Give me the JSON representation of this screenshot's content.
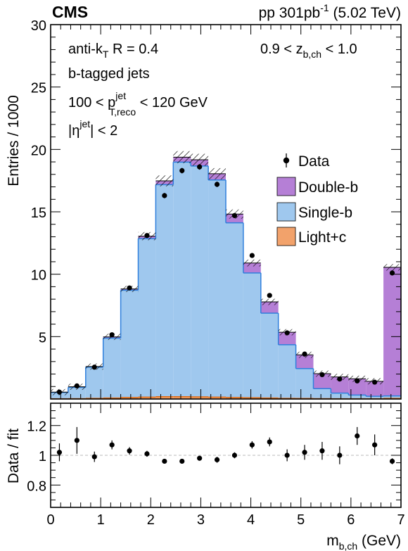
{
  "header": {
    "experiment": "CMS",
    "luminosity_prefix": "pp 301pb",
    "luminosity_exponent": "-1",
    "energy": " (5.02 TeV)"
  },
  "annotations": {
    "algorithm_main": "anti-k",
    "algorithm_sub": "T",
    "algorithm_rest": " R = 0.4",
    "z_range_pre": "0.9 < z",
    "z_range_sub": "b,ch",
    "z_range_post": " < 1.0",
    "tagging": "b-tagged jets",
    "pt_pre": "100 < p",
    "pt_sup": "jet",
    "pt_sub": "T,reco",
    "pt_post": " < 120 GeV",
    "eta_pre": "|η",
    "eta_sup": "jet",
    "eta_post": "| < 2"
  },
  "colors": {
    "double_b": "#b57fd6",
    "single_b": "#9fc8ee",
    "single_b_line": "#2f7fdc",
    "light_c": "#f2a26b",
    "light_c_line": "#e06a10"
  },
  "chart_data": [
    {
      "type": "bar",
      "stacked": true,
      "xlabel_main": "m",
      "xlabel_sub": "b,ch",
      "xlabel_unit": " (GeV)",
      "ylabel": "Entries / 1000",
      "xlim": [
        0,
        7
      ],
      "ylim": [
        0,
        30
      ],
      "y_ticks": [
        "5",
        "10",
        "15",
        "20",
        "25",
        "30"
      ],
      "x_ticks": [
        "0",
        "1",
        "2",
        "3",
        "4",
        "5",
        "6",
        "7"
      ],
      "legend_position": "top-right",
      "bin_edges": [
        0,
        0.35,
        0.7,
        1.05,
        1.4,
        1.75,
        2.1,
        2.45,
        2.8,
        3.15,
        3.5,
        3.85,
        4.2,
        4.55,
        4.9,
        5.25,
        5.6,
        5.95,
        6.3,
        6.65,
        7.0
      ],
      "legend": {
        "data": "Data",
        "double_b": "Double-b",
        "single_b": "Single-b",
        "light_c": "Light+c"
      },
      "series": [
        {
          "name": "Light+c",
          "values": [
            0.02,
            0.03,
            0.05,
            0.08,
            0.12,
            0.15,
            0.18,
            0.18,
            0.17,
            0.15,
            0.12,
            0.1,
            0.08,
            0.05,
            0.04,
            0.03,
            0.02,
            0.02,
            0.02,
            0.05
          ]
        },
        {
          "name": "Single-b",
          "values": [
            0.5,
            0.9,
            2.5,
            4.8,
            8.6,
            12.7,
            17.0,
            18.8,
            18.5,
            17.4,
            14.0,
            10.0,
            6.8,
            4.3,
            2.4,
            0.8,
            0.45,
            0.3,
            0.2,
            0.2
          ]
        },
        {
          "name": "Double-b",
          "values": [
            0.03,
            0.05,
            0.05,
            0.1,
            0.1,
            0.2,
            0.3,
            0.4,
            0.5,
            0.5,
            0.7,
            0.8,
            0.9,
            1.0,
            1.1,
            1.2,
            1.3,
            1.3,
            1.2,
            10.3
          ]
        }
      ],
      "data_points": {
        "x": [
          0.175,
          0.525,
          0.875,
          1.225,
          1.575,
          1.925,
          2.275,
          2.625,
          2.975,
          3.325,
          3.675,
          4.025,
          4.375,
          4.725,
          5.075,
          5.425,
          5.775,
          6.125,
          6.475,
          6.825
        ],
        "y": [
          0.55,
          1.05,
          2.55,
          5.15,
          8.9,
          13.1,
          16.3,
          18.3,
          18.6,
          17.2,
          14.7,
          11.5,
          8.3,
          5.3,
          3.6,
          1.95,
          1.6,
          1.45,
          1.35,
          10.1
        ]
      }
    },
    {
      "type": "scatter",
      "xlabel": "",
      "ylabel": "Data / fit",
      "xlim": [
        0,
        7
      ],
      "ylim": [
        0.65,
        1.35
      ],
      "y_ticks": [
        "0.8",
        "1",
        "1.2"
      ],
      "reference_line": 1.0,
      "x": [
        0.175,
        0.525,
        0.875,
        1.225,
        1.575,
        1.925,
        2.275,
        2.625,
        2.975,
        3.325,
        3.675,
        4.025,
        4.375,
        4.725,
        5.075,
        5.425,
        5.775,
        6.125,
        6.475,
        6.825
      ],
      "y": [
        1.02,
        1.1,
        0.99,
        1.07,
        1.03,
        1.01,
        0.96,
        0.96,
        0.98,
        0.97,
        1.0,
        1.07,
        1.09,
        1.0,
        1.02,
        1.03,
        1.0,
        1.13,
        1.07,
        0.96
      ],
      "err": [
        0.06,
        0.09,
        0.035,
        0.03,
        0.025,
        0.02,
        0.015,
        0.015,
        0.015,
        0.02,
        0.02,
        0.025,
        0.03,
        0.04,
        0.05,
        0.06,
        0.06,
        0.06,
        0.07,
        0.02
      ]
    }
  ]
}
